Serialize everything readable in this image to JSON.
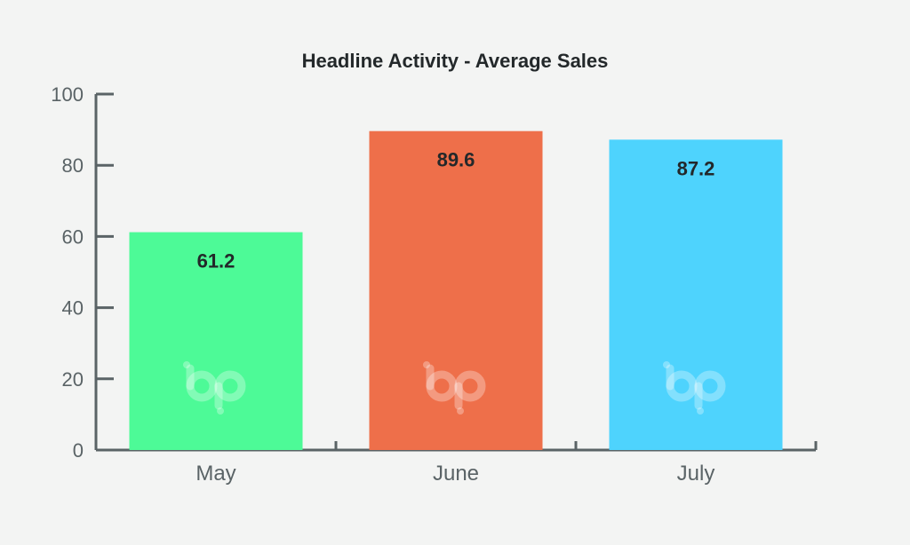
{
  "chart_data": {
    "type": "bar",
    "title": "Headline Activity - Average Sales",
    "xlabel": "",
    "ylabel": "",
    "categories": [
      "May",
      "June",
      "July"
    ],
    "values": [
      61.2,
      89.6,
      87.2
    ],
    "data_labels": [
      "61.2",
      "89.6",
      "87.2"
    ],
    "ylim": [
      0,
      100
    ],
    "yticks": [
      0,
      20,
      40,
      60,
      80,
      100
    ],
    "ytick_labels": [
      "0",
      "20",
      "40",
      "60",
      "80",
      "100"
    ],
    "bar_colors": [
      "#4dfa97",
      "#ee6f4a",
      "#4ed3fd"
    ],
    "axis_color": "#5a6366",
    "grid": false,
    "legend": "none",
    "watermark_icon": "bp-logo-icon"
  }
}
